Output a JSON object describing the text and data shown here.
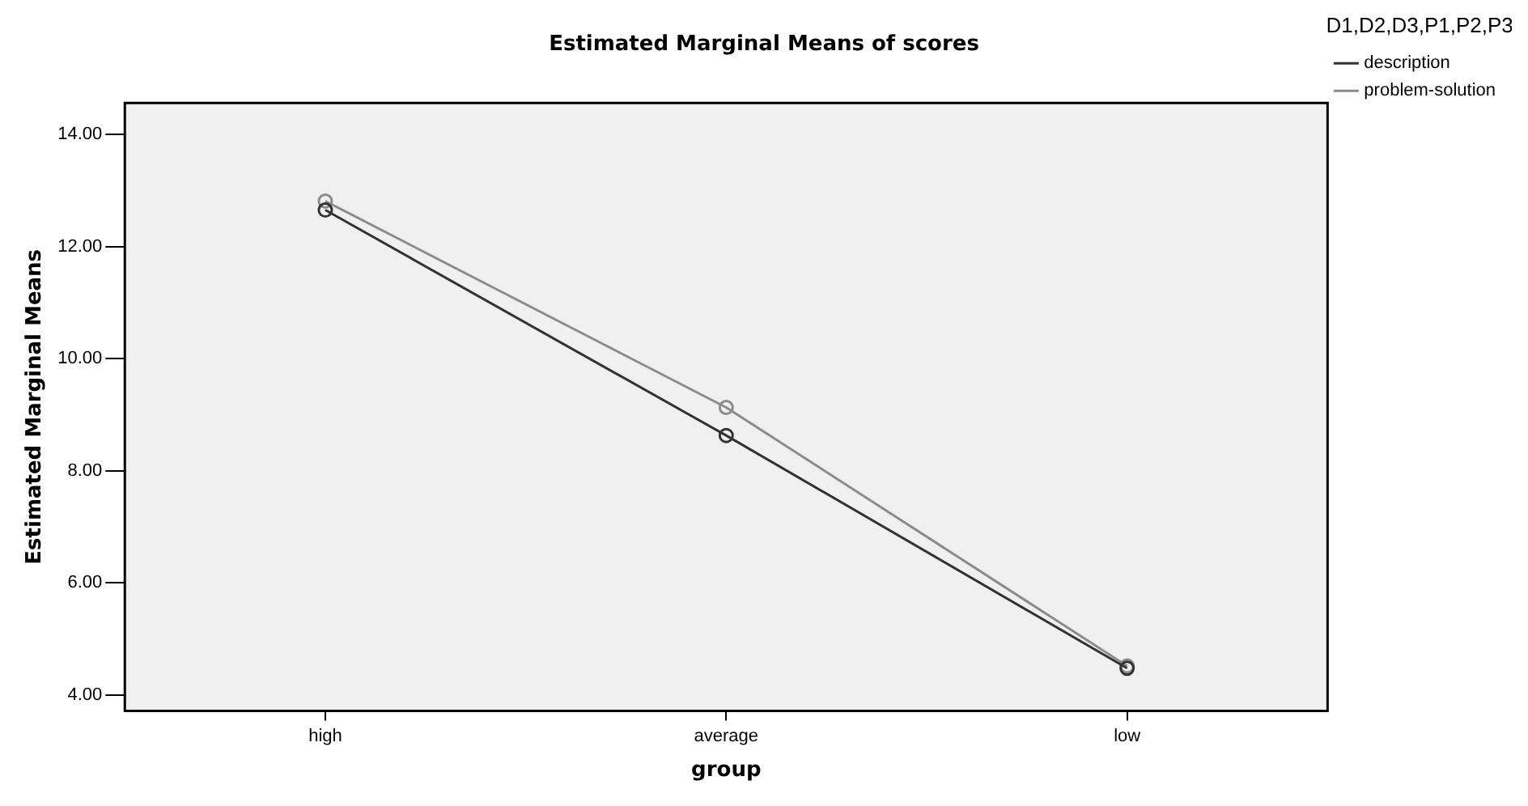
{
  "chart_data": {
    "type": "line",
    "title": "Estimated Marginal Means of scores",
    "xlabel": "group",
    "ylabel": "Estimated Marginal Means",
    "legend_title": "D1,D2,D3,P1,P2,P3",
    "categories": [
      "high",
      "average",
      "low"
    ],
    "series": [
      {
        "name": "description",
        "color": "#333333",
        "values": [
          12.65,
          8.63,
          4.48
        ]
      },
      {
        "name": "problem-solution",
        "color": "#8c8c8c",
        "values": [
          12.81,
          9.13,
          4.52
        ]
      }
    ],
    "ylim": [
      3.72,
      14.56
    ],
    "yticks": [
      {
        "value": 4,
        "label": "4.00"
      },
      {
        "value": 6,
        "label": "6.00"
      },
      {
        "value": 8,
        "label": "8.00"
      },
      {
        "value": 10,
        "label": "10.00"
      },
      {
        "value": 12,
        "label": "12.00"
      },
      {
        "value": 14,
        "label": "14.00"
      }
    ],
    "grid": false,
    "legend": "top right",
    "marker": "circle",
    "line_style": "solid"
  }
}
